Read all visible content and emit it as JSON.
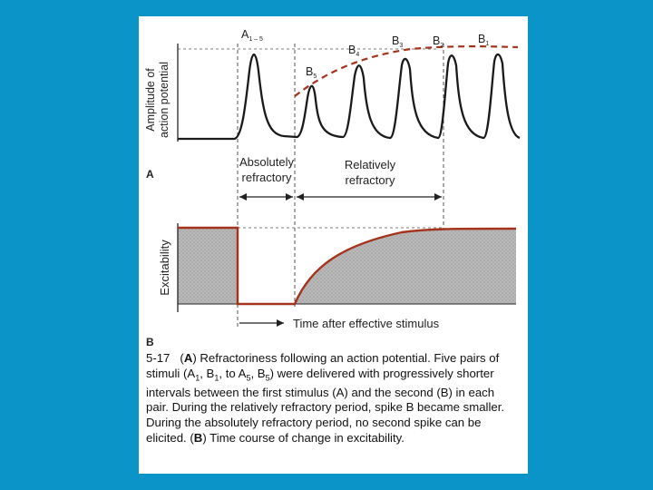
{
  "panel_a": {
    "y_axis_label_line1": "Amplitude of",
    "y_axis_label_line2": "action potential",
    "letter": "A",
    "spike_labels": [
      {
        "base": "A",
        "sub": "1 – 5"
      },
      {
        "base": "B",
        "sub": "5"
      },
      {
        "base": "B",
        "sub": "4"
      },
      {
        "base": "B",
        "sub": "3"
      },
      {
        "base": "B",
        "sub": "2"
      },
      {
        "base": "B",
        "sub": "1"
      }
    ],
    "absolute_label_line1": "Absolutely",
    "absolute_label_line2": "refractory",
    "relative_label_line1": "Relatively",
    "relative_label_line2": "refractory"
  },
  "panel_b": {
    "y_axis_label": "Excitability",
    "letter": "B",
    "x_axis_label": "Time after effective stimulus"
  },
  "caption": {
    "number": "5-17",
    "text_1": "(",
    "bold_a": "A",
    "text_2": ") Refractoriness following an action potential. Five pairs of stimuli (A",
    "sub_1a": "1",
    "text_3": ", B",
    "sub_1b": "1",
    "text_4": ", to A",
    "sub_5a": "5",
    "text_5": ", B",
    "sub_5b": "5",
    "text_6": ") were delivered with progressively shorter intervals between the first stimulus (A) and the second (B) in each pair. During the relatively refractory period, spike B became smaller. During the absolutely refractory period, no second spike can be elicited. (",
    "bold_b": "B",
    "text_7": ") Time course of change in excitability."
  },
  "colors": {
    "background": "#0a94c8",
    "panel": "#ffffff",
    "curve": "#a5331c",
    "shading": "#b3b3b3",
    "trace": "#1a1a1a"
  }
}
